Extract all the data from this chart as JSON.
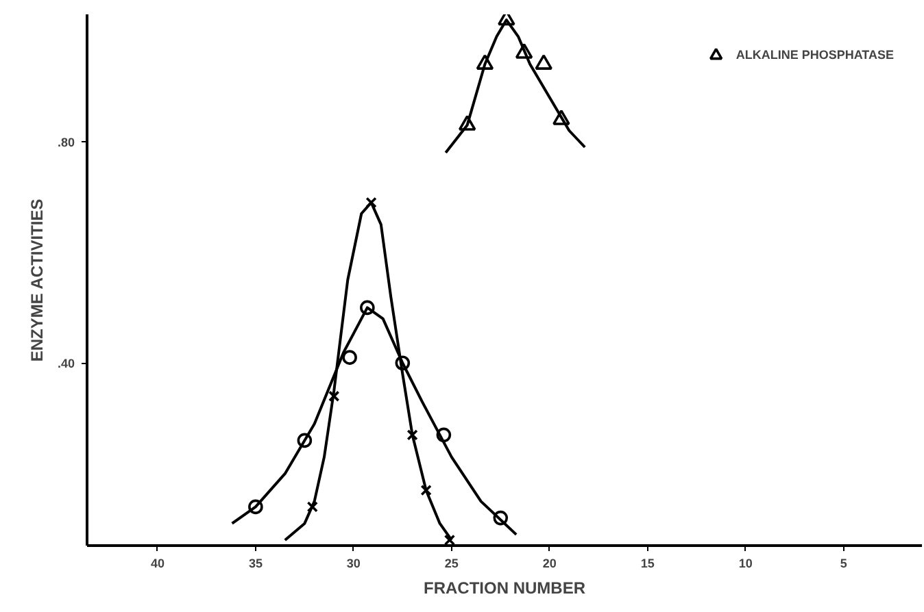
{
  "chart_data": {
    "type": "scatter",
    "xlabel": "FRACTION NUMBER",
    "ylabel": "ENZYME ACTIVITIES",
    "xlim": [
      43.6,
      1.0
    ],
    "ylim": [
      0.07,
      1.03
    ],
    "xticks": [
      40,
      35,
      30,
      25,
      20,
      15,
      10,
      5
    ],
    "yticks": [
      {
        "value": 0.4,
        "label": ".40"
      },
      {
        "value": 0.8,
        "label": ".80"
      }
    ],
    "legend": "top right",
    "series": [
      {
        "name": "ALKALINE PHOSPHATASE",
        "marker": "triangle",
        "color": "#000000",
        "x": [
          24.2,
          23.3,
          22.2,
          21.3,
          20.3,
          19.4
        ],
        "values": [
          0.83,
          0.94,
          1.02,
          0.96,
          0.94,
          0.84
        ]
      },
      {
        "marker": "circle",
        "color": "#000000",
        "x": [
          35.0,
          32.5,
          30.2,
          29.3,
          27.5,
          25.4,
          22.5
        ],
        "values": [
          0.14,
          0.26,
          0.41,
          0.5,
          0.4,
          0.27,
          0.12
        ]
      },
      {
        "marker": "cross",
        "color": "#000000",
        "x": [
          32.1,
          31.0,
          29.1,
          27.0,
          26.3,
          25.1
        ],
        "values": [
          0.14,
          0.34,
          0.69,
          0.27,
          0.17,
          0.08
        ]
      },
      {
        "type": "line",
        "line_style": "solid",
        "color": "#000000",
        "x": [
          25.3,
          24.2,
          23.3,
          22.7,
          22.2,
          21.6,
          21.0,
          20.0,
          19.0,
          18.2
        ],
        "values": [
          0.78,
          0.83,
          0.94,
          0.99,
          1.02,
          0.99,
          0.94,
          0.88,
          0.82,
          0.79
        ]
      },
      {
        "type": "line",
        "line_style": "solid",
        "color": "#000000",
        "x": [
          36.2,
          35.0,
          33.5,
          32.0,
          30.5,
          29.3,
          28.5,
          27.5,
          26.5,
          25.0,
          23.5,
          21.7
        ],
        "values": [
          0.11,
          0.14,
          0.2,
          0.29,
          0.42,
          0.5,
          0.48,
          0.4,
          0.33,
          0.23,
          0.15,
          0.09
        ]
      },
      {
        "type": "line",
        "line_style": "solid",
        "color": "#000000",
        "x": [
          33.5,
          32.5,
          32.0,
          31.5,
          31.0,
          30.3,
          29.6,
          29.1,
          28.6,
          28.1,
          27.5,
          27.0,
          26.3,
          25.6,
          25.0
        ],
        "values": [
          0.08,
          0.11,
          0.15,
          0.23,
          0.35,
          0.55,
          0.67,
          0.69,
          0.65,
          0.52,
          0.38,
          0.27,
          0.17,
          0.11,
          0.08
        ]
      }
    ]
  }
}
